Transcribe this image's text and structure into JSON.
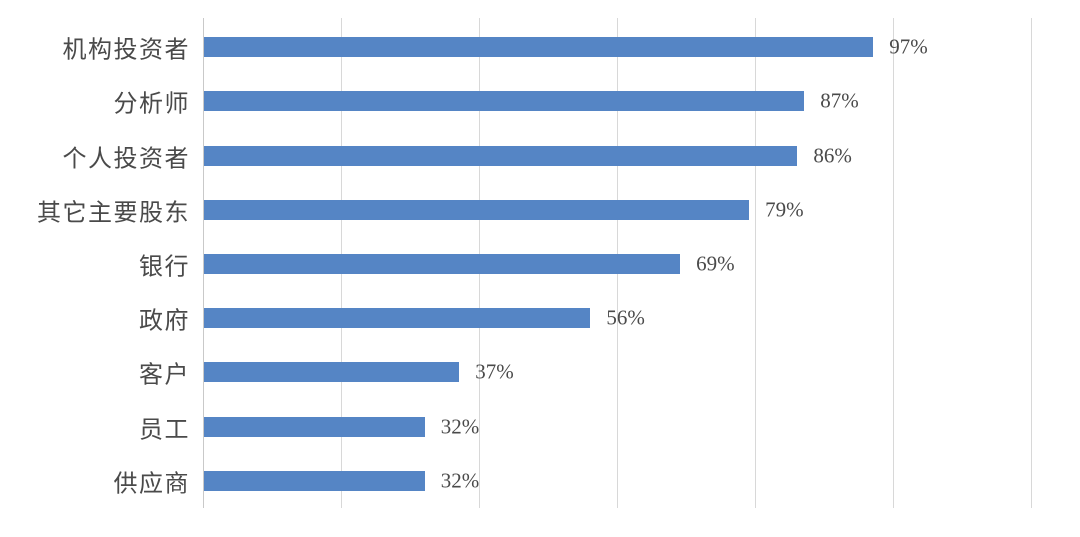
{
  "chart_data": {
    "type": "bar",
    "orientation": "horizontal",
    "title": "",
    "xlabel": "",
    "ylabel": "",
    "categories": [
      "机构投资者",
      "分析师",
      "个人投资者",
      "其它主要股东",
      "银行",
      "政府",
      "客户",
      "员工",
      "供应商"
    ],
    "values": [
      97,
      87,
      86,
      79,
      69,
      56,
      37,
      32,
      32
    ],
    "value_labels": [
      "97%",
      "87%",
      "86%",
      "79%",
      "69%",
      "56%",
      "37%",
      "32%",
      "32%"
    ],
    "xlim": [
      0,
      120
    ],
    "gridline_interval_pct": 20,
    "grid": true,
    "legend": false,
    "colors": {
      "bar": "#5585C5",
      "gridline": "#D8D8D8",
      "axis_line": "#C9C9C9",
      "label_text": "#4A4A4A",
      "background": "#FFFFFF"
    }
  }
}
